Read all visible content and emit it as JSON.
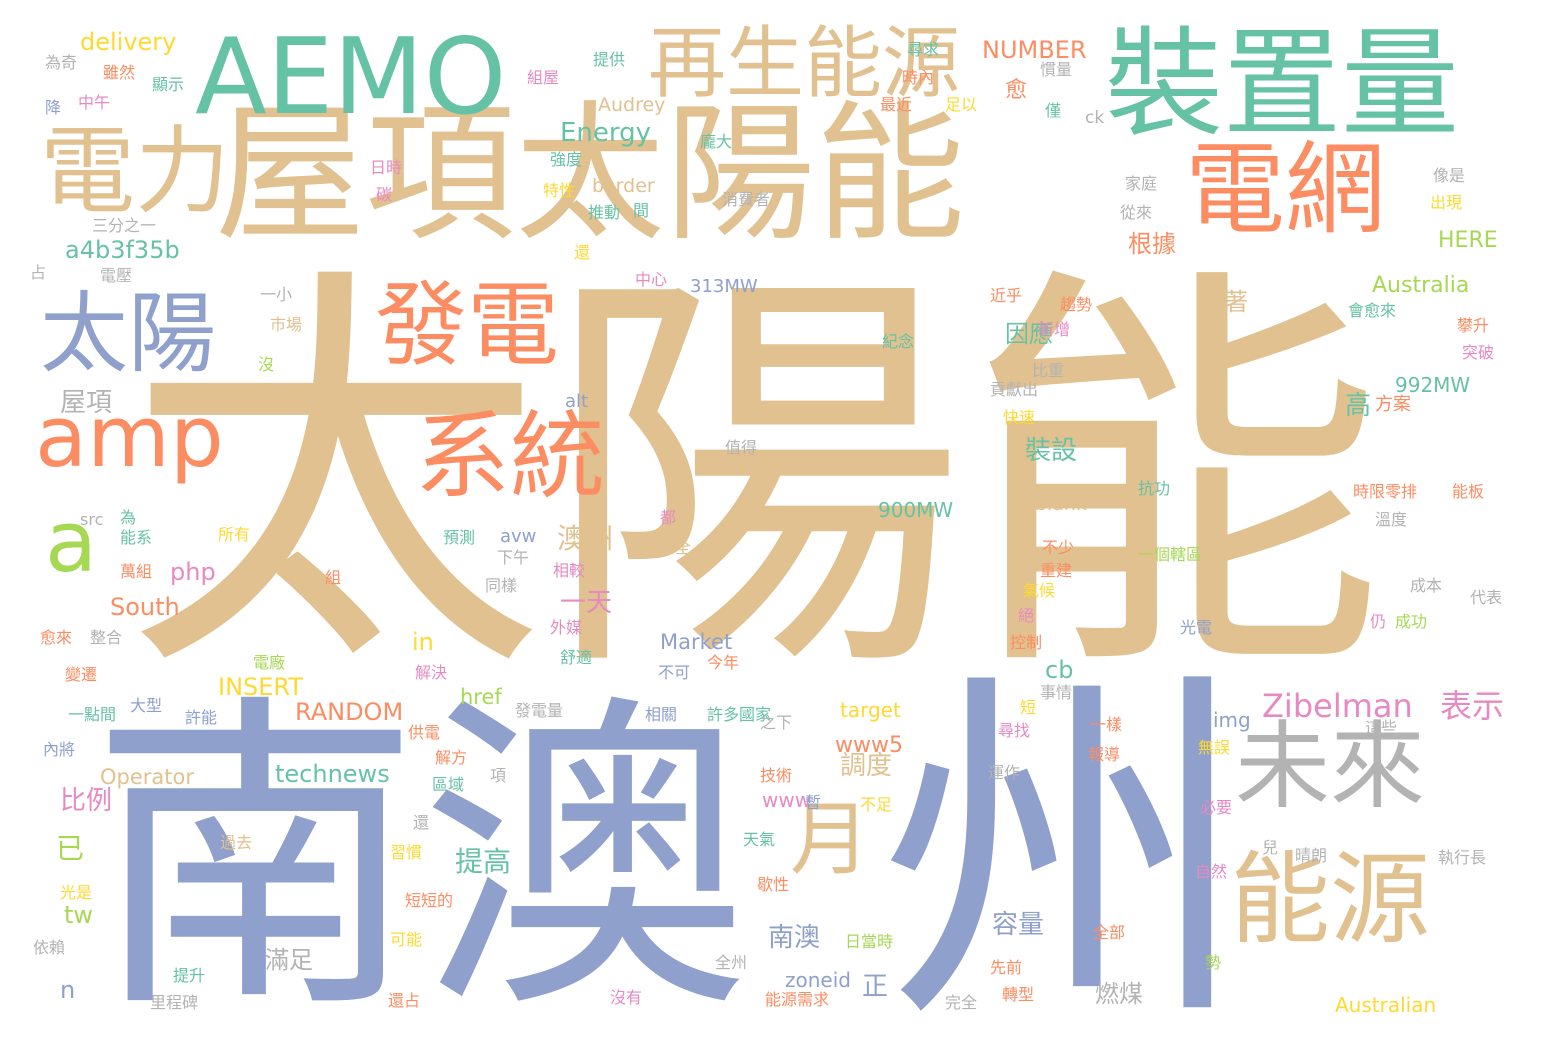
{
  "word_cloud": {
    "palette": {
      "tan": "#e1c18f",
      "blue": "#8ea0cb",
      "green": "#66c2a5",
      "orange": "#fc8d62",
      "gray": "#b3b3b3",
      "pink": "#e78ac3",
      "lime": "#a6d854",
      "yellow": "#ffd92f"
    },
    "words": [
      {
        "text": "太陽能",
        "color": "tan"
      },
      {
        "text": "南澳",
        "color": "blue"
      },
      {
        "text": "州",
        "color": "blue"
      },
      {
        "text": "屋項太陽能",
        "color": "tan"
      },
      {
        "text": "AEMO",
        "color": "green"
      },
      {
        "text": "裝置量",
        "color": "green"
      },
      {
        "text": "電網",
        "color": "orange"
      },
      {
        "text": "電力",
        "color": "tan"
      },
      {
        "text": "再生能源",
        "color": "tan"
      },
      {
        "text": "太陽",
        "color": "blue"
      },
      {
        "text": "發電",
        "color": "orange"
      },
      {
        "text": "amp",
        "color": "orange"
      },
      {
        "text": "系統",
        "color": "orange"
      },
      {
        "text": "a",
        "color": "lime"
      },
      {
        "text": "未來",
        "color": "gray"
      },
      {
        "text": "能源",
        "color": "tan"
      },
      {
        "text": "月",
        "color": "tan"
      },
      {
        "text": "Zibelman",
        "color": "pink"
      },
      {
        "text": "表示",
        "color": "pink"
      },
      {
        "text": "NUMBER",
        "color": "orange"
      },
      {
        "text": "delivery",
        "color": "yellow"
      },
      {
        "text": "Energy",
        "color": "green"
      },
      {
        "text": "a4b3f35b",
        "color": "green"
      },
      {
        "text": "Australia",
        "color": "lime"
      },
      {
        "text": "HERE",
        "color": "lime"
      },
      {
        "text": "992MW",
        "color": "green"
      },
      {
        "text": "900MW",
        "color": "green"
      },
      {
        "text": "313MW",
        "color": "blue"
      },
      {
        "text": "border",
        "color": "tan"
      },
      {
        "text": "Audrey",
        "color": "tan"
      },
      {
        "text": "blank",
        "color": "tan"
      },
      {
        "text": "South",
        "color": "orange"
      },
      {
        "text": "php",
        "color": "pink"
      },
      {
        "text": "INSERT",
        "color": "yellow"
      },
      {
        "text": "RANDOM",
        "color": "orange"
      },
      {
        "text": "technews",
        "color": "green"
      },
      {
        "text": "Operator",
        "color": "tan"
      },
      {
        "text": "Market",
        "color": "blue"
      },
      {
        "text": "target",
        "color": "yellow"
      },
      {
        "text": "href",
        "color": "lime"
      },
      {
        "text": "www5",
        "color": "orange"
      },
      {
        "text": "www",
        "color": "pink"
      },
      {
        "text": "zoneid",
        "color": "blue"
      },
      {
        "text": "Australian",
        "color": "yellow"
      },
      {
        "text": "img",
        "color": "blue"
      },
      {
        "text": "cb",
        "color": "green"
      },
      {
        "text": "in",
        "color": "yellow"
      },
      {
        "text": "tw",
        "color": "lime"
      },
      {
        "text": "n",
        "color": "blue"
      },
      {
        "text": "alt",
        "color": "blue"
      },
      {
        "text": "src",
        "color": "gray"
      },
      {
        "text": "ck",
        "color": "gray"
      },
      {
        "text": "avw",
        "color": "blue"
      },
      {
        "text": "澳洲",
        "color": "tan"
      },
      {
        "text": "一天",
        "color": "pink"
      },
      {
        "text": "屋項",
        "color": "gray"
      },
      {
        "text": "比例",
        "color": "pink"
      },
      {
        "text": "已",
        "color": "lime"
      },
      {
        "text": "提高",
        "color": "green"
      },
      {
        "text": "調度",
        "color": "tan"
      },
      {
        "text": "南澳",
        "color": "blue"
      },
      {
        "text": "滿足",
        "color": "gray"
      },
      {
        "text": "容量",
        "color": "blue"
      },
      {
        "text": "燃煤",
        "color": "gray"
      },
      {
        "text": "正",
        "color": "blue"
      },
      {
        "text": "因應",
        "color": "green"
      },
      {
        "text": "裝設",
        "color": "green"
      },
      {
        "text": "根據",
        "color": "orange"
      },
      {
        "text": "隨著",
        "color": "tan"
      },
      {
        "text": "高",
        "color": "green"
      },
      {
        "text": "方案",
        "color": "orange"
      },
      {
        "text": "為奇",
        "color": "gray"
      },
      {
        "text": "雖然",
        "color": "orange"
      },
      {
        "text": "顯示",
        "color": "green"
      },
      {
        "text": "中午",
        "color": "pink"
      },
      {
        "text": "降",
        "color": "blue"
      },
      {
        "text": "組屋",
        "color": "pink"
      },
      {
        "text": "提供",
        "color": "green"
      },
      {
        "text": "尋求",
        "color": "green"
      },
      {
        "text": "時內",
        "color": "orange"
      },
      {
        "text": "最近",
        "color": "orange"
      },
      {
        "text": "足以",
        "color": "yellow"
      },
      {
        "text": "愈",
        "color": "orange"
      },
      {
        "text": "僅",
        "color": "green"
      },
      {
        "text": "慣量",
        "color": "gray"
      },
      {
        "text": "龐大",
        "color": "green"
      },
      {
        "text": "強度",
        "color": "green"
      },
      {
        "text": "特性",
        "color": "yellow"
      },
      {
        "text": "推動",
        "color": "green"
      },
      {
        "text": "間",
        "color": "green"
      },
      {
        "text": "消費者",
        "color": "gray"
      },
      {
        "text": "三分之一",
        "color": "gray"
      },
      {
        "text": "日時",
        "color": "pink"
      },
      {
        "text": "碳",
        "color": "pink"
      },
      {
        "text": "還",
        "color": "yellow"
      },
      {
        "text": "中心",
        "color": "pink"
      },
      {
        "text": "占",
        "color": "gray"
      },
      {
        "text": "電壓",
        "color": "gray"
      },
      {
        "text": "一小",
        "color": "gray"
      },
      {
        "text": "市場",
        "color": "tan"
      },
      {
        "text": "沒",
        "color": "lime"
      },
      {
        "text": "紀念",
        "color": "green"
      },
      {
        "text": "近乎",
        "color": "orange"
      },
      {
        "text": "趨勢",
        "color": "orange"
      },
      {
        "text": "新增",
        "color": "pink"
      },
      {
        "text": "貢獻出",
        "color": "gray"
      },
      {
        "text": "比重",
        "color": "gray"
      },
      {
        "text": "快速",
        "color": "yellow"
      },
      {
        "text": "值得",
        "color": "gray"
      },
      {
        "text": "家庭",
        "color": "gray"
      },
      {
        "text": "從來",
        "color": "gray"
      },
      {
        "text": "像是",
        "color": "gray"
      },
      {
        "text": "出現",
        "color": "yellow"
      },
      {
        "text": "會愈來",
        "color": "green"
      },
      {
        "text": "攀升",
        "color": "orange"
      },
      {
        "text": "突破",
        "color": "pink"
      },
      {
        "text": "抗功",
        "color": "green"
      },
      {
        "text": "時限零排",
        "color": "orange"
      },
      {
        "text": "能板",
        "color": "orange"
      },
      {
        "text": "溫度",
        "color": "gray"
      },
      {
        "text": "一個轄區",
        "color": "lime"
      },
      {
        "text": "成本",
        "color": "gray"
      },
      {
        "text": "代表",
        "color": "gray"
      },
      {
        "text": "成功",
        "color": "lime"
      },
      {
        "text": "仍",
        "color": "pink"
      },
      {
        "text": "光電",
        "color": "blue"
      },
      {
        "text": "所有",
        "color": "yellow"
      },
      {
        "text": "為",
        "color": "green"
      },
      {
        "text": "能系",
        "color": "green"
      },
      {
        "text": "萬組",
        "color": "orange"
      },
      {
        "text": "預測",
        "color": "green"
      },
      {
        "text": "下午",
        "color": "gray"
      },
      {
        "text": "相較",
        "color": "pink"
      },
      {
        "text": "都",
        "color": "pink"
      },
      {
        "text": "全",
        "color": "tan"
      },
      {
        "text": "組",
        "color": "orange"
      },
      {
        "text": "同樣",
        "color": "gray"
      },
      {
        "text": "不少",
        "color": "orange"
      },
      {
        "text": "重建",
        "color": "orange"
      },
      {
        "text": "氣候",
        "color": "yellow"
      },
      {
        "text": "絕",
        "color": "pink"
      },
      {
        "text": "控制",
        "color": "orange"
      },
      {
        "text": "愈來",
        "color": "orange"
      },
      {
        "text": "整合",
        "color": "gray"
      },
      {
        "text": "外媒",
        "color": "pink"
      },
      {
        "text": "解決",
        "color": "pink"
      },
      {
        "text": "舒適",
        "color": "green"
      },
      {
        "text": "不可",
        "color": "blue"
      },
      {
        "text": "今年",
        "color": "orange"
      },
      {
        "text": "電廠",
        "color": "lime"
      },
      {
        "text": "變遷",
        "color": "orange"
      },
      {
        "text": "一點間",
        "color": "green"
      },
      {
        "text": "大型",
        "color": "blue"
      },
      {
        "text": "許能",
        "color": "blue"
      },
      {
        "text": "發電量",
        "color": "gray"
      },
      {
        "text": "相關",
        "color": "blue"
      },
      {
        "text": "許多國家",
        "color": "green"
      },
      {
        "text": "短",
        "color": "yellow"
      },
      {
        "text": "事情",
        "color": "gray"
      },
      {
        "text": "一樣",
        "color": "orange"
      },
      {
        "text": "尋找",
        "color": "pink"
      },
      {
        "text": "報導",
        "color": "orange"
      },
      {
        "text": "這些",
        "color": "gray"
      },
      {
        "text": "內將",
        "color": "blue"
      },
      {
        "text": "供電",
        "color": "orange"
      },
      {
        "text": "解方",
        "color": "orange"
      },
      {
        "text": "項",
        "color": "gray"
      },
      {
        "text": "區域",
        "color": "green"
      },
      {
        "text": "之下",
        "color": "gray"
      },
      {
        "text": "技術",
        "color": "orange"
      },
      {
        "text": "暫",
        "color": "blue"
      },
      {
        "text": "不足",
        "color": "yellow"
      },
      {
        "text": "運作",
        "color": "gray"
      },
      {
        "text": "無誤",
        "color": "yellow"
      },
      {
        "text": "必要",
        "color": "pink"
      },
      {
        "text": "過去",
        "color": "tan"
      },
      {
        "text": "還",
        "color": "gray"
      },
      {
        "text": "習慣",
        "color": "yellow"
      },
      {
        "text": "天氣",
        "color": "green"
      },
      {
        "text": "兒",
        "color": "gray"
      },
      {
        "text": "晴朗",
        "color": "gray"
      },
      {
        "text": "執行長",
        "color": "gray"
      },
      {
        "text": "自然",
        "color": "pink"
      },
      {
        "text": "光是",
        "color": "yellow"
      },
      {
        "text": "短短的",
        "color": "orange"
      },
      {
        "text": "歇性",
        "color": "orange"
      },
      {
        "text": "可能",
        "color": "yellow"
      },
      {
        "text": "日當時",
        "color": "lime"
      },
      {
        "text": "全部",
        "color": "orange"
      },
      {
        "text": "勢",
        "color": "lime"
      },
      {
        "text": "依賴",
        "color": "gray"
      },
      {
        "text": "提升",
        "color": "green"
      },
      {
        "text": "全州",
        "color": "gray"
      },
      {
        "text": "先前",
        "color": "orange"
      },
      {
        "text": "里程碑",
        "color": "gray"
      },
      {
        "text": "沒有",
        "color": "pink"
      },
      {
        "text": "能源需求",
        "color": "orange"
      },
      {
        "text": "轉型",
        "color": "orange"
      },
      {
        "text": "還占",
        "color": "orange"
      },
      {
        "text": "完全",
        "color": "gray"
      }
    ]
  }
}
